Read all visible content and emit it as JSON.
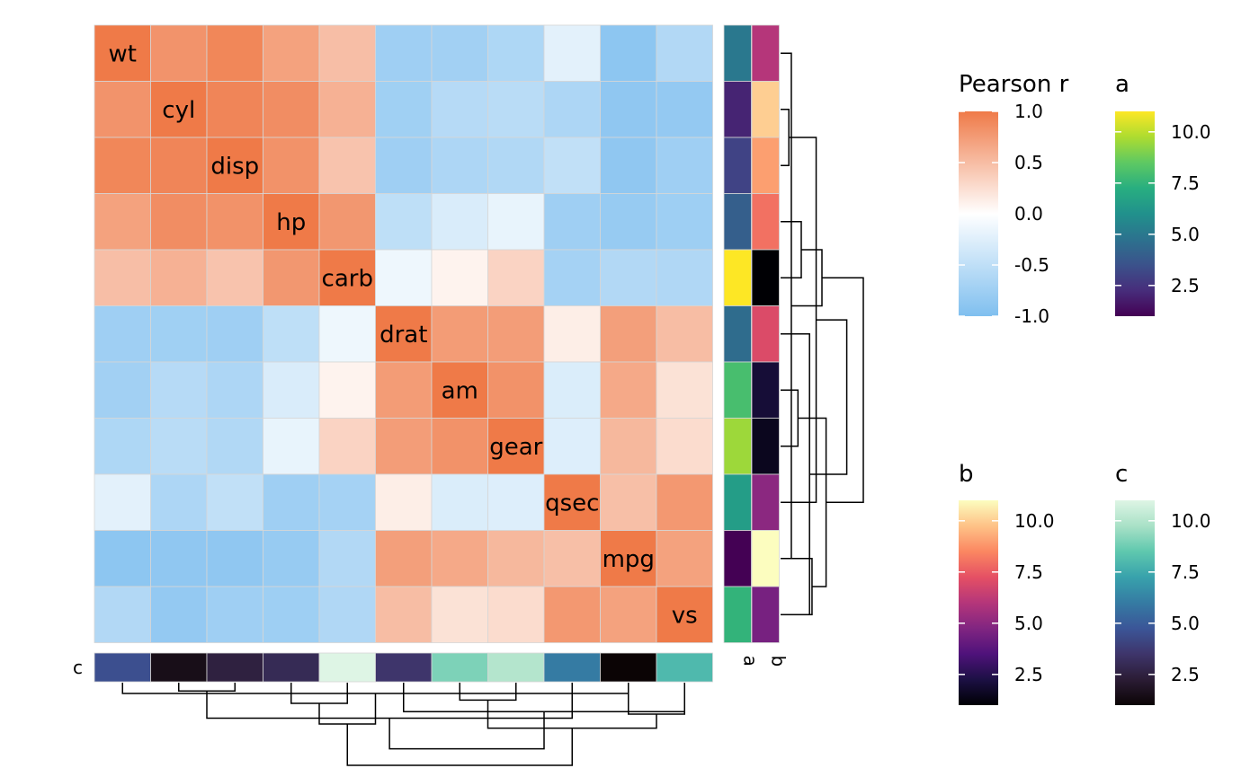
{
  "chart_data": {
    "type": "heatmap",
    "legend_title": "Pearson r",
    "variables": [
      "wt",
      "cyl",
      "disp",
      "hp",
      "carb",
      "drat",
      "am",
      "gear",
      "qsec",
      "mpg",
      "vs"
    ],
    "values": [
      [
        1.0,
        0.78,
        0.89,
        0.66,
        0.43,
        -0.71,
        -0.69,
        -0.58,
        -0.17,
        -0.87,
        -0.55
      ],
      [
        0.78,
        1.0,
        0.9,
        0.83,
        0.53,
        -0.7,
        -0.52,
        -0.49,
        -0.59,
        -0.85,
        -0.81
      ],
      [
        0.89,
        0.9,
        1.0,
        0.79,
        0.39,
        -0.71,
        -0.59,
        -0.56,
        -0.43,
        -0.85,
        -0.71
      ],
      [
        0.66,
        0.83,
        0.79,
        1.0,
        0.75,
        -0.45,
        -0.24,
        -0.13,
        -0.71,
        -0.78,
        -0.72
      ],
      [
        0.43,
        0.53,
        0.39,
        0.75,
        1.0,
        -0.09,
        0.06,
        0.27,
        -0.66,
        -0.55,
        -0.57
      ],
      [
        -0.71,
        -0.7,
        -0.71,
        -0.45,
        -0.09,
        1.0,
        0.71,
        0.7,
        0.09,
        0.68,
        0.44
      ],
      [
        -0.69,
        -0.52,
        -0.59,
        -0.24,
        0.06,
        0.71,
        1.0,
        0.79,
        -0.23,
        0.6,
        0.17
      ],
      [
        -0.58,
        -0.49,
        -0.56,
        -0.13,
        0.27,
        0.7,
        0.79,
        1.0,
        -0.21,
        0.48,
        0.21
      ],
      [
        -0.17,
        -0.59,
        -0.43,
        -0.71,
        -0.66,
        0.09,
        -0.23,
        -0.21,
        1.0,
        0.42,
        0.74
      ],
      [
        -0.87,
        -0.85,
        -0.85,
        -0.78,
        -0.55,
        0.68,
        0.6,
        0.48,
        0.42,
        1.0,
        0.66
      ],
      [
        -0.55,
        -0.81,
        -0.71,
        -0.72,
        -0.57,
        0.44,
        0.17,
        0.21,
        0.74,
        0.66,
        1.0
      ]
    ],
    "color_scale": {
      "min": -1.0,
      "max": 1.0,
      "low": "#7fbfef",
      "mid": "#ffffff",
      "high": "#ef7a48",
      "ticks": [
        "1.0",
        "0.5",
        "0.0",
        "-0.5",
        "-1.0"
      ]
    },
    "row_annotations": {
      "a": {
        "label": "a",
        "values": [
          5,
          2,
          3,
          4,
          11,
          4.5,
          8,
          9.5,
          6.5,
          1,
          7.5
        ]
      },
      "b": {
        "label": "b",
        "values": [
          6,
          10,
          9,
          8,
          0.5,
          7,
          2,
          1.5,
          5,
          11,
          4.5
        ]
      }
    },
    "column_annotation": {
      "label": "c",
      "values": [
        4.5,
        1.5,
        2.5,
        3,
        11,
        3.5,
        9,
        10,
        6,
        0.8,
        8
      ]
    },
    "annotation_legends": [
      {
        "title": "a",
        "palette": "viridis",
        "range": [
          1,
          11
        ],
        "ticks": [
          "10.0",
          "7.5",
          "5.0",
          "2.5"
        ]
      },
      {
        "title": "b",
        "palette": "magma",
        "range": [
          1,
          11
        ],
        "ticks": [
          "10.0",
          "7.5",
          "5.0",
          "2.5"
        ]
      },
      {
        "title": "c",
        "palette": "mako",
        "range": [
          1,
          11
        ],
        "ticks": [
          "10.0",
          "7.5",
          "5.0",
          "2.5"
        ]
      }
    ],
    "dendrogram": {
      "row_order_note": "rows and columns share the same hierarchical clustering",
      "merges": [
        [
          1,
          2,
          0.1
        ],
        [
          0,
          9,
          0.13
        ],
        [
          3,
          4,
          0.25
        ],
        [
          9,
          10,
          0.38
        ],
        [
          6,
          7,
          0.21
        ],
        [
          5,
          10,
          0.35
        ],
        [
          8,
          11,
          0.43
        ],
        [
          12,
          13,
          0.5
        ],
        [
          14,
          15,
          0.55
        ],
        [
          16,
          17,
          0.8
        ],
        [
          18,
          19,
          1.0
        ]
      ]
    }
  }
}
